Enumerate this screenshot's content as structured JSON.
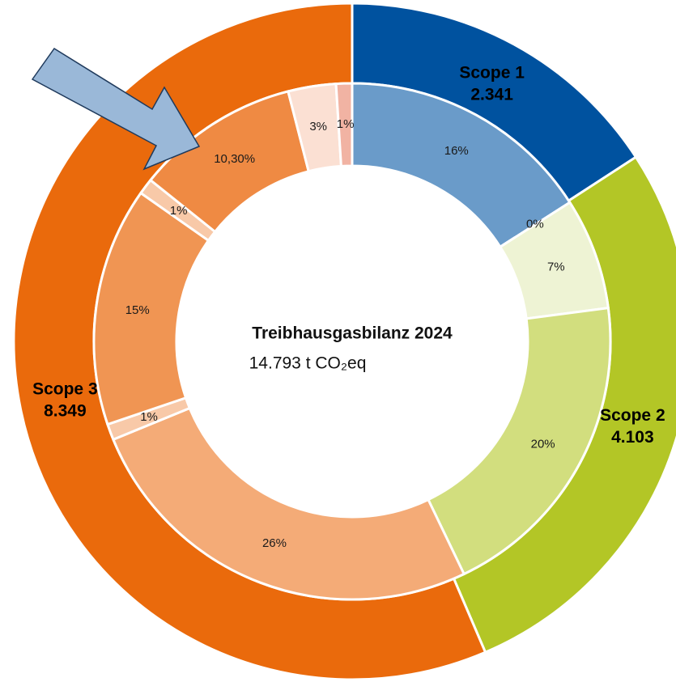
{
  "chart_data": {
    "type": "donut",
    "center_title": "Treibhausgasbilanz 2024",
    "center_subtitle": "14.793 t CO₂eq",
    "rings": [
      {
        "categories": [
          "Scope 1",
          "Scope 2",
          "Scope 3"
        ],
        "values": [
          2341,
          4103,
          8349
        ],
        "value_labels": [
          "2.341",
          "4.103",
          "8.349"
        ],
        "colors": [
          "#00529f",
          "#b3c626",
          "#ea6a0c"
        ]
      },
      {
        "values": [
          16,
          0,
          7,
          20,
          26,
          1,
          15,
          1,
          10.3,
          3,
          1
        ],
        "value_labels": [
          "16%",
          "0%",
          "7%",
          "20%",
          "26%",
          "1%",
          "15%",
          "1%",
          "10,30%",
          "3%",
          "1%"
        ],
        "colors": [
          "#6a9bc9",
          "#a9c4e4",
          "#eef3d4",
          "#d2de7e",
          "#f4ab77",
          "#f8c9a8",
          "#f09553",
          "#f8c9a8",
          "#ef8a43",
          "#fbe0d3",
          "#f1b3a3"
        ]
      }
    ]
  }
}
